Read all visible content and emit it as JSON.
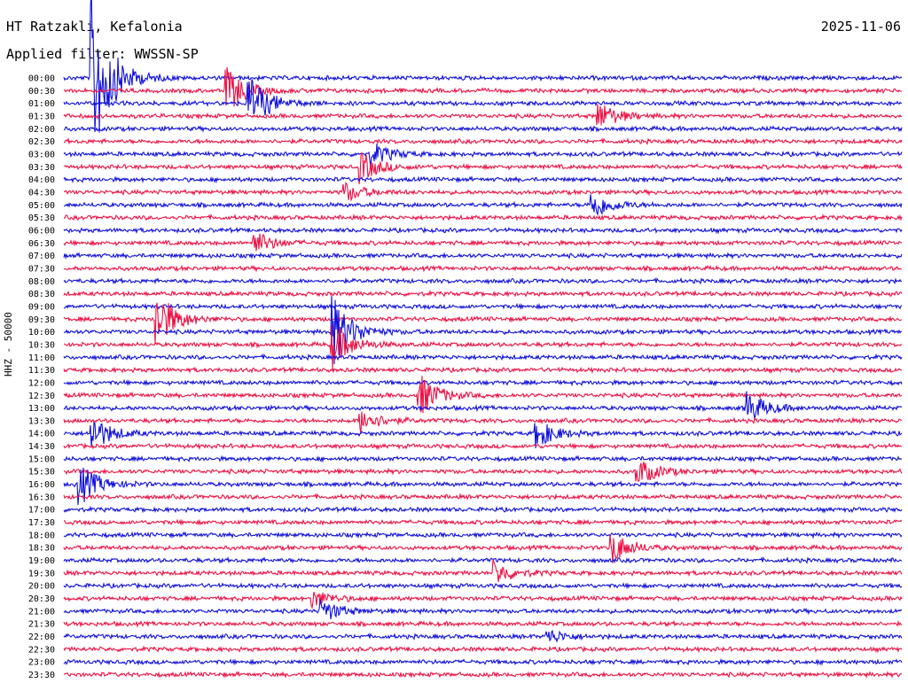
{
  "header": {
    "station": "HT Ratzakli, Kefalonia",
    "filter": "Applied filter: WWSSN-SP",
    "date": "2025-11-06",
    "channel": "HHZ - 50000"
  },
  "colors": {
    "trace_a": "#1010dd",
    "trace_b": "#ee1144",
    "text": "#000000",
    "background": "#ffffff"
  },
  "chart_data": {
    "type": "line",
    "title": "HT Ratzakli, Kefalonia",
    "subtitle": "Applied filter: WWSSN-SP",
    "date": "2025-11-06",
    "ylabel": "HHZ - 50000",
    "row_labels": [
      "00:00",
      "00:30",
      "01:00",
      "01:30",
      "02:00",
      "02:30",
      "03:00",
      "03:30",
      "04:00",
      "04:30",
      "05:00",
      "05:30",
      "06:00",
      "06:30",
      "07:00",
      "07:30",
      "08:00",
      "08:30",
      "09:00",
      "09:30",
      "10:00",
      "10:30",
      "11:00",
      "11:30",
      "12:00",
      "12:30",
      "13:00",
      "13:30",
      "14:00",
      "14:30",
      "15:00",
      "15:30",
      "16:00",
      "16:30",
      "17:00",
      "17:30",
      "18:00",
      "18:30",
      "19:00",
      "19:30",
      "20:00",
      "20:30",
      "21:00",
      "21:30",
      "22:00",
      "22:30",
      "23:00",
      "23:30"
    ],
    "row_colors": [
      "trace_a",
      "trace_b"
    ],
    "minutes_per_row": 30,
    "events": [
      {
        "row": 0,
        "minute": 1.0,
        "amp": 6.0
      },
      {
        "row": 1,
        "minute": 5.8,
        "amp": 1.6
      },
      {
        "row": 2,
        "minute": 6.6,
        "amp": 2.0
      },
      {
        "row": 3,
        "minute": 19.1,
        "amp": 1.0
      },
      {
        "row": 6,
        "minute": 11.0,
        "amp": 0.8
      },
      {
        "row": 7,
        "minute": 10.6,
        "amp": 1.0
      },
      {
        "row": 9,
        "minute": 10.0,
        "amp": 0.7
      },
      {
        "row": 10,
        "minute": 18.9,
        "amp": 1.0
      },
      {
        "row": 13,
        "minute": 6.8,
        "amp": 0.8
      },
      {
        "row": 19,
        "minute": 3.3,
        "amp": 2.0
      },
      {
        "row": 20,
        "minute": 9.6,
        "amp": 2.5
      },
      {
        "row": 21,
        "minute": 9.6,
        "amp": 1.5
      },
      {
        "row": 25,
        "minute": 12.7,
        "amp": 1.5
      },
      {
        "row": 26,
        "minute": 24.4,
        "amp": 1.2
      },
      {
        "row": 27,
        "minute": 10.6,
        "amp": 0.9
      },
      {
        "row": 28,
        "minute": 1.0,
        "amp": 1.2
      },
      {
        "row": 28,
        "minute": 16.9,
        "amp": 1.0
      },
      {
        "row": 31,
        "minute": 20.5,
        "amp": 1.0
      },
      {
        "row": 32,
        "minute": 0.5,
        "amp": 1.5
      },
      {
        "row": 37,
        "minute": 19.6,
        "amp": 1.1
      },
      {
        "row": 39,
        "minute": 15.4,
        "amp": 0.8
      },
      {
        "row": 41,
        "minute": 8.9,
        "amp": 0.6
      },
      {
        "row": 42,
        "minute": 9.2,
        "amp": 0.8
      },
      {
        "row": 44,
        "minute": 17.3,
        "amp": 0.5
      }
    ]
  }
}
